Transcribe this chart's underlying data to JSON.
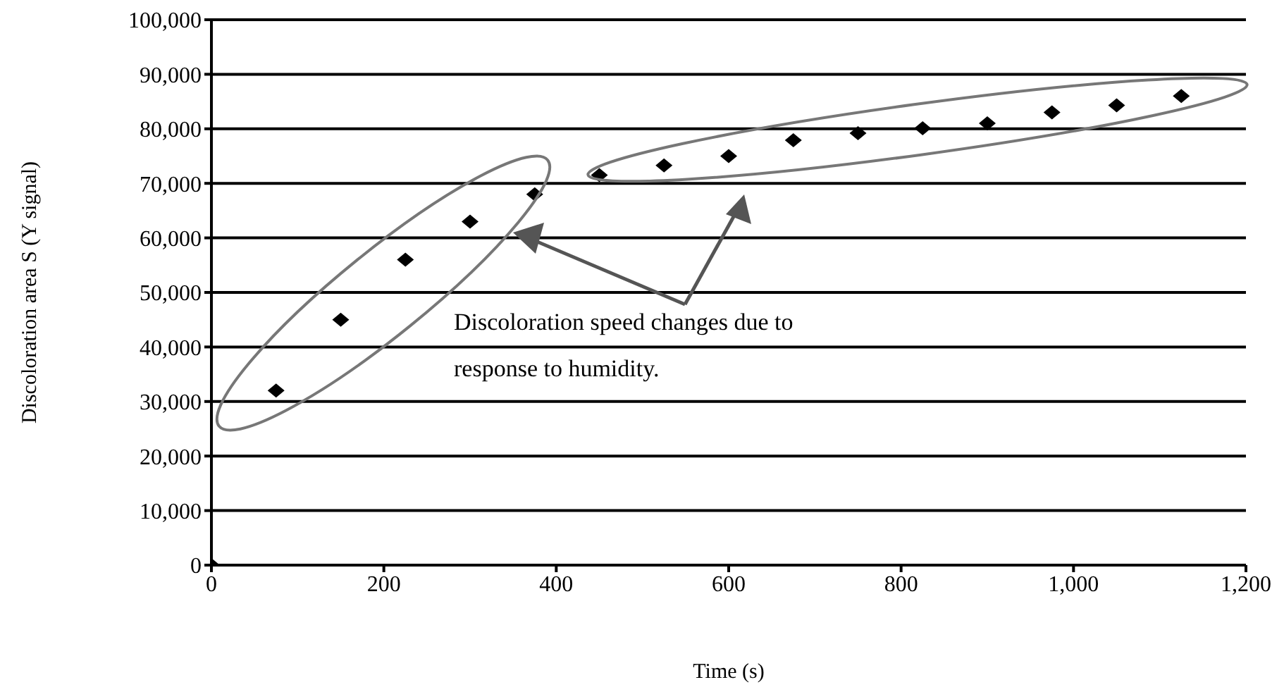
{
  "chart_data": {
    "type": "scatter",
    "xlabel": "Time (s)",
    "ylabel": "Discoloration area S (Y signal)",
    "x": [
      0,
      75,
      150,
      225,
      300,
      375,
      450,
      525,
      600,
      675,
      750,
      825,
      900,
      975,
      1050,
      1125
    ],
    "series": [
      {
        "color": "#000000",
        "values": [
          0,
          32000,
          45000,
          56000,
          63000,
          68000,
          71500,
          73300,
          75000,
          77900,
          79200,
          80100,
          81000,
          83000,
          84300,
          86000
        ]
      }
    ],
    "xlim": [
      0,
      1200
    ],
    "xticks": [
      {
        "value": 0,
        "label": "0"
      },
      {
        "value": 200,
        "label": "200"
      },
      {
        "value": 400,
        "label": "400"
      },
      {
        "value": 600,
        "label": "600"
      },
      {
        "value": 800,
        "label": "800"
      },
      {
        "value": 1000,
        "label": "1,000"
      },
      {
        "value": 1200,
        "label": "1,200"
      }
    ],
    "ylim": [
      0,
      100000
    ],
    "yticks": [
      {
        "value": 0,
        "label": "0"
      },
      {
        "value": 10000,
        "label": "10,000"
      },
      {
        "value": 20000,
        "label": "20,000"
      },
      {
        "value": 30000,
        "label": "30,000"
      },
      {
        "value": 40000,
        "label": "40,000"
      },
      {
        "value": 50000,
        "label": "50,000"
      },
      {
        "value": 60000,
        "label": "60,000"
      },
      {
        "value": 70000,
        "label": "70,000"
      },
      {
        "value": 80000,
        "label": "80,000"
      },
      {
        "value": 90000,
        "label": "90,000"
      },
      {
        "value": 100000,
        "label": "100,000"
      }
    ],
    "grid": "y",
    "legend": false,
    "marker": "diamond",
    "annotations": [
      "Discoloration speed changes due to response to humidity."
    ]
  }
}
